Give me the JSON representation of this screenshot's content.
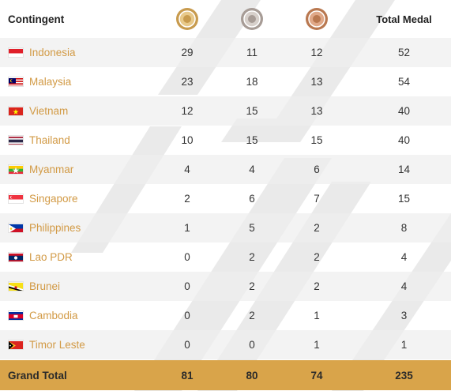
{
  "header": {
    "contingent": "Contingent",
    "total": "Total Medal",
    "medals": [
      {
        "name": "gold-medal-icon",
        "color": "#c89b4e",
        "inner": "#e8c98a"
      },
      {
        "name": "silver-medal-icon",
        "color": "#a79c96",
        "inner": "#d7d0cb"
      },
      {
        "name": "bronze-medal-icon",
        "color": "#b97850",
        "inner": "#e0a888"
      }
    ]
  },
  "rows": [
    {
      "country": "Indonesia",
      "flag": "indonesia",
      "gold": "29",
      "silver": "11",
      "bronze": "12",
      "total": "52"
    },
    {
      "country": "Malaysia",
      "flag": "malaysia",
      "gold": "23",
      "silver": "18",
      "bronze": "13",
      "total": "54"
    },
    {
      "country": "Vietnam",
      "flag": "vietnam",
      "gold": "12",
      "silver": "15",
      "bronze": "13",
      "total": "40"
    },
    {
      "country": "Thailand",
      "flag": "thailand",
      "gold": "10",
      "silver": "15",
      "bronze": "15",
      "total": "40"
    },
    {
      "country": "Myanmar",
      "flag": "myanmar",
      "gold": "4",
      "silver": "4",
      "bronze": "6",
      "total": "14"
    },
    {
      "country": "Singapore",
      "flag": "singapore",
      "gold": "2",
      "silver": "6",
      "bronze": "7",
      "total": "15"
    },
    {
      "country": "Philippines",
      "flag": "philippines",
      "gold": "1",
      "silver": "5",
      "bronze": "2",
      "total": "8"
    },
    {
      "country": "Lao PDR",
      "flag": "laos",
      "gold": "0",
      "silver": "2",
      "bronze": "2",
      "total": "4"
    },
    {
      "country": "Brunei",
      "flag": "brunei",
      "gold": "0",
      "silver": "2",
      "bronze": "2",
      "total": "4"
    },
    {
      "country": "Cambodia",
      "flag": "cambodia",
      "gold": "0",
      "silver": "2",
      "bronze": "1",
      "total": "3"
    },
    {
      "country": "Timor Leste",
      "flag": "timor-leste",
      "gold": "0",
      "silver": "0",
      "bronze": "1",
      "total": "1"
    }
  ],
  "grand_total": {
    "label": "Grand Total",
    "gold": "81",
    "silver": "80",
    "bronze": "74",
    "total": "235"
  },
  "colors": {
    "accent": "#d9a44a",
    "country_text": "#d29a45",
    "stripe": "#eeeeee"
  }
}
